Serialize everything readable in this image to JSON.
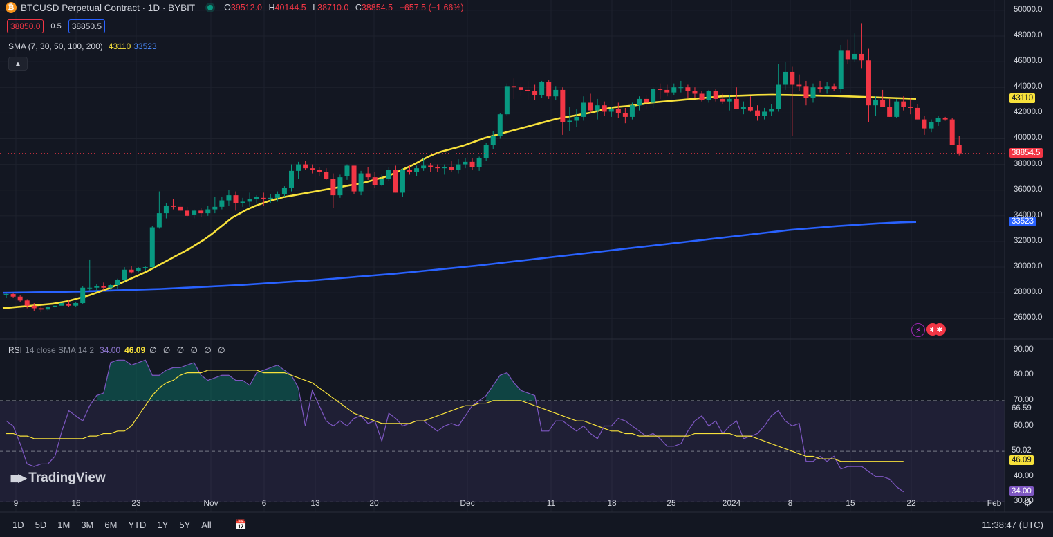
{
  "header": {
    "title": "BTCUSD Perpetual Contract · 1D · BYBIT",
    "open_key": "O",
    "open": "39512.0",
    "high_key": "H",
    "high": "40144.5",
    "low_key": "L",
    "low": "38710.0",
    "close_key": "C",
    "close": "38854.5",
    "change": "−657.5 (−1.66%)",
    "icon": "bitcoin-icon"
  },
  "prices": {
    "sell": "38850.0",
    "spread": "0.5",
    "buy": "38850.5"
  },
  "sma_legend": {
    "label": "SMA (7, 30, 50, 100, 200)",
    "val_yellow": "43110",
    "val_blue": "33523"
  },
  "rsi_legend": {
    "label": "RSI",
    "params": "14 close SMA 14 2",
    "rsi": "34.00",
    "ma": "46.09",
    "extra": "∅ ∅ ∅ ∅ ∅ ∅"
  },
  "brand": "TradingView",
  "bottom": {
    "ranges": [
      "1D",
      "5D",
      "1M",
      "3M",
      "6M",
      "YTD",
      "1Y",
      "5Y",
      "All"
    ],
    "clock": "11:38:47 (UTC)"
  },
  "colors": {
    "up": "#089981",
    "down": "#f23645",
    "sma_short": "#f7e13b",
    "sma_long": "#2962ff",
    "rsi": "#7e57c2",
    "rsi_ma": "#f7e13b",
    "bg": "#131722"
  },
  "chart_data": {
    "type": "candlestick",
    "series_labels": [
      "SMA 30",
      "SMA 200"
    ],
    "price_axis": {
      "ticks": [
        "50000.0",
        "48000.0",
        "46000.0",
        "44000.0",
        "42000.0",
        "40000.0",
        "38000.0",
        "36000.0",
        "34000.0",
        "32000.0",
        "30000.0",
        "28000.0",
        "26000.0"
      ],
      "range": [
        24400,
        50800
      ]
    },
    "x_ticks": [
      "9",
      "16",
      "23",
      "Nov",
      "6",
      "13",
      "20",
      "Dec",
      "11",
      "18",
      "25",
      "2024",
      "8",
      "15",
      "22",
      "Feb"
    ],
    "last_price": "38854.5",
    "sma_short_label": "43110",
    "sma_long_label": "33523",
    "candles": [
      [
        27800,
        28000,
        27600,
        27900
      ],
      [
        27900,
        28000,
        27600,
        27700
      ],
      [
        27700,
        27800,
        27300,
        27400
      ],
      [
        27400,
        27500,
        26800,
        27000
      ],
      [
        27000,
        27200,
        26600,
        26800
      ],
      [
        26800,
        27000,
        26500,
        26700
      ],
      [
        26700,
        27000,
        26600,
        26900
      ],
      [
        26900,
        27100,
        26800,
        27000
      ],
      [
        27000,
        27300,
        26900,
        27200
      ],
      [
        27100,
        27400,
        26900,
        27000
      ],
      [
        27000,
        27300,
        26900,
        27200
      ],
      [
        27200,
        28500,
        27100,
        28400
      ],
      [
        28400,
        30600,
        28200,
        28400
      ],
      [
        28400,
        28700,
        28100,
        28500
      ],
      [
        28500,
        28800,
        28200,
        28400
      ],
      [
        28400,
        28700,
        28200,
        28600
      ],
      [
        28600,
        29100,
        28300,
        29000
      ],
      [
        29000,
        30000,
        28900,
        29800
      ],
      [
        29800,
        30100,
        29500,
        29600
      ],
      [
        29700,
        30000,
        29600,
        29900
      ],
      [
        29900,
        30100,
        29700,
        30000
      ],
      [
        30000,
        33200,
        29900,
        33100
      ],
      [
        33100,
        35900,
        33000,
        34200
      ],
      [
        34200,
        35000,
        33800,
        34800
      ],
      [
        34800,
        35300,
        34500,
        34700
      ],
      [
        34700,
        35000,
        34200,
        34400
      ],
      [
        34400,
        34700,
        33900,
        34000
      ],
      [
        34100,
        34500,
        33800,
        34400
      ],
      [
        34400,
        34600,
        33900,
        34200
      ],
      [
        34200,
        34800,
        34000,
        34500
      ],
      [
        34500,
        35500,
        34200,
        34700
      ],
      [
        34700,
        35500,
        34500,
        35200
      ],
      [
        35200,
        36000,
        34800,
        35600
      ],
      [
        35600,
        35900,
        34400,
        35000
      ],
      [
        35000,
        35400,
        34700,
        35100
      ],
      [
        35100,
        35800,
        34700,
        35300
      ],
      [
        35300,
        35600,
        35000,
        35500
      ],
      [
        35400,
        35800,
        34800,
        35300
      ],
      [
        35300,
        35700,
        35000,
        35400
      ],
      [
        35400,
        35900,
        35100,
        35700
      ],
      [
        35700,
        36300,
        35500,
        36200
      ],
      [
        36200,
        38000,
        35900,
        37500
      ],
      [
        37500,
        38200,
        36900,
        38000
      ],
      [
        38000,
        38300,
        37600,
        37700
      ],
      [
        37700,
        38000,
        37300,
        37600
      ],
      [
        37600,
        37800,
        37100,
        37400
      ],
      [
        37400,
        37700,
        36800,
        36900
      ],
      [
        36900,
        37300,
        34600,
        35600
      ],
      [
        35600,
        37200,
        35400,
        37000
      ],
      [
        37100,
        38000,
        36800,
        37900
      ],
      [
        37900,
        37900,
        35700,
        35900
      ],
      [
        35900,
        37500,
        35600,
        37300
      ],
      [
        37300,
        37800,
        36800,
        37000
      ],
      [
        37000,
        37400,
        36200,
        36400
      ],
      [
        36400,
        37200,
        36300,
        36900
      ],
      [
        36900,
        37800,
        36700,
        37600
      ],
      [
        37600,
        37900,
        35800,
        35800
      ],
      [
        35800,
        37700,
        35500,
        37600
      ],
      [
        37600,
        37900,
        37200,
        37400
      ],
      [
        37400,
        37900,
        37100,
        37700
      ],
      [
        37700,
        38500,
        37500,
        37900
      ],
      [
        37900,
        38100,
        37400,
        37800
      ],
      [
        37800,
        38000,
        37400,
        37700
      ],
      [
        37700,
        38000,
        37200,
        37800
      ],
      [
        37800,
        38300,
        37400,
        37600
      ],
      [
        37600,
        38400,
        37300,
        38000
      ],
      [
        38000,
        38500,
        37700,
        38200
      ],
      [
        38200,
        38500,
        37600,
        37800
      ],
      [
        37800,
        38600,
        37500,
        38500
      ],
      [
        38500,
        39700,
        38300,
        39500
      ],
      [
        39500,
        40600,
        39200,
        40200
      ],
      [
        40200,
        42000,
        40000,
        41900
      ],
      [
        41900,
        44300,
        41800,
        44100
      ],
      [
        44100,
        44700,
        43100,
        44000
      ],
      [
        44000,
        44300,
        43300,
        43800
      ],
      [
        43800,
        44500,
        43000,
        43700
      ],
      [
        43700,
        44200,
        43000,
        43400
      ],
      [
        43400,
        44500,
        43200,
        44400
      ],
      [
        44400,
        44600,
        43100,
        43300
      ],
      [
        43300,
        44100,
        43000,
        43800
      ],
      [
        43800,
        44000,
        40300,
        41300
      ],
      [
        41300,
        42500,
        40600,
        41400
      ],
      [
        41400,
        42300,
        40900,
        41700
      ],
      [
        41700,
        43300,
        41400,
        42800
      ],
      [
        42800,
        43500,
        42000,
        42200
      ],
      [
        42200,
        43100,
        41500,
        42600
      ],
      [
        42600,
        42900,
        41800,
        42100
      ],
      [
        42100,
        42500,
        41700,
        42300
      ],
      [
        42300,
        42800,
        41600,
        42000
      ],
      [
        42000,
        42400,
        41200,
        41700
      ],
      [
        41700,
        42800,
        41500,
        42600
      ],
      [
        42600,
        43300,
        42200,
        43100
      ],
      [
        43100,
        43400,
        42300,
        42800
      ],
      [
        42800,
        44000,
        42400,
        43900
      ],
      [
        43900,
        44300,
        43100,
        43800
      ],
      [
        43800,
        44200,
        43300,
        43600
      ],
      [
        43600,
        44300,
        43400,
        44000
      ],
      [
        44000,
        44500,
        43600,
        44000
      ],
      [
        44000,
        44200,
        43200,
        43700
      ],
      [
        43700,
        44000,
        43200,
        43500
      ],
      [
        43500,
        43700,
        42900,
        43000
      ],
      [
        43000,
        43800,
        42800,
        43700
      ],
      [
        43700,
        43900,
        42900,
        43100
      ],
      [
        43100,
        43500,
        42700,
        42900
      ],
      [
        42900,
        43400,
        42200,
        43100
      ],
      [
        43100,
        44000,
        42400,
        42300
      ],
      [
        42300,
        42900,
        41900,
        42500
      ],
      [
        42500,
        43300,
        42100,
        42200
      ],
      [
        42200,
        42600,
        41400,
        41800
      ],
      [
        41800,
        42400,
        41500,
        42100
      ],
      [
        42100,
        42700,
        41800,
        42300
      ],
      [
        42300,
        45800,
        42100,
        44200
      ],
      [
        44200,
        46000,
        43800,
        45200
      ],
      [
        45200,
        45600,
        40200,
        44200
      ],
      [
        44200,
        45000,
        43700,
        44100
      ],
      [
        44100,
        44500,
        42600,
        43200
      ],
      [
        43200,
        44300,
        42800,
        44000
      ],
      [
        44000,
        44500,
        43600,
        43900
      ],
      [
        43900,
        44400,
        43500,
        44100
      ],
      [
        44100,
        44300,
        43700,
        43900
      ],
      [
        43900,
        47300,
        43600,
        46900
      ],
      [
        46900,
        47700,
        45800,
        46200
      ],
      [
        46200,
        48200,
        46000,
        46600
      ],
      [
        46600,
        49000,
        45500,
        46100
      ],
      [
        46100,
        47000,
        41300,
        42600
      ],
      [
        42600,
        43300,
        41800,
        43000
      ],
      [
        43000,
        43800,
        42500,
        42500
      ],
      [
        42500,
        43100,
        41700,
        41700
      ],
      [
        41700,
        43100,
        41600,
        42900
      ],
      [
        42900,
        43300,
        42200,
        42500
      ],
      [
        42500,
        43200,
        41900,
        42400
      ],
      [
        42400,
        42700,
        41500,
        41500
      ],
      [
        41500,
        41800,
        40300,
        40800
      ],
      [
        40800,
        41500,
        40500,
        41300
      ],
      [
        41300,
        41800,
        41000,
        41600
      ],
      [
        41600,
        41700,
        41400,
        41500
      ],
      [
        41500,
        41600,
        39600,
        39500
      ],
      [
        39500,
        40200,
        38700,
        38855
      ]
    ],
    "sma_short": [
      26800,
      26850,
      26900,
      26950,
      27000,
      27050,
      27100,
      27150,
      27250,
      27350,
      27500,
      27650,
      27800,
      28000,
      28200,
      28400,
      28650,
      28900,
      29150,
      29400,
      29650,
      29950,
      30250,
      30550,
      30850,
      31150,
      31450,
      31800,
      32150,
      32550,
      33000,
      33450,
      33900,
      34200,
      34500,
      34750,
      34950,
      35150,
      35300,
      35450,
      35550,
      35650,
      35750,
      35850,
      35950,
      36050,
      36150,
      36250,
      36350,
      36450,
      36550,
      36700,
      36850,
      37000,
      37200,
      37450,
      37700,
      37950,
      38250,
      38550,
      38800,
      39000,
      39150,
      39300,
      39450,
      39650,
      39850,
      40050,
      40200,
      40350,
      40500,
      40650,
      40800,
      40950,
      41100,
      41250,
      41400,
      41550,
      41650,
      41750,
      41850,
      41950,
      42050,
      42200,
      42350,
      42450,
      42500,
      42550,
      42600,
      42700,
      42800,
      42850,
      42900,
      42950,
      43000,
      43050,
      43100,
      43150,
      43200,
      43250,
      43300,
      43320,
      43340,
      43360,
      43380,
      43400,
      43410,
      43420,
      43410,
      43400,
      43390,
      43380,
      43370,
      43360,
      43350,
      43340,
      43330,
      43310,
      43290,
      43270,
      43250,
      43230,
      43210,
      43190,
      43170,
      43150,
      43130,
      43110
    ],
    "sma_long": [
      28000,
      28010,
      28020,
      28030,
      28040,
      28050,
      28060,
      28070,
      28080,
      28090,
      28100,
      28120,
      28140,
      28160,
      28180,
      28200,
      28220,
      28240,
      28260,
      28280,
      28300,
      28330,
      28360,
      28390,
      28420,
      28450,
      28480,
      28510,
      28540,
      28570,
      28600,
      28640,
      28680,
      28720,
      28760,
      28800,
      28840,
      28880,
      28920,
      28960,
      29000,
      29050,
      29100,
      29150,
      29200,
      29250,
      29300,
      29350,
      29400,
      29450,
      29500,
      29560,
      29620,
      29680,
      29740,
      29800,
      29860,
      29920,
      29980,
      30040,
      30100,
      30170,
      30240,
      30310,
      30380,
      30450,
      30520,
      30590,
      30660,
      30730,
      30800,
      30870,
      30940,
      31010,
      31080,
      31150,
      31220,
      31290,
      31360,
      31430,
      31500,
      31570,
      31640,
      31710,
      31780,
      31850,
      31920,
      31990,
      32060,
      32130,
      32200,
      32270,
      32340,
      32410,
      32480,
      32550,
      32620,
      32690,
      32760,
      32830,
      32900,
      32950,
      33000,
      33050,
      33100,
      33150,
      33200,
      33240,
      33280,
      33320,
      33360,
      33400,
      33430,
      33460,
      33490,
      33510,
      33523
    ],
    "rsi": {
      "axis_ticks": [
        "90.00",
        "80.00",
        "70.00",
        "60.00",
        "50.00",
        "40.00",
        "30.00"
      ],
      "range": [
        26,
        94
      ],
      "upper": 70,
      "middle": 50,
      "lower": 30,
      "label_upper": "66.59",
      "label_middle": "50.02",
      "label_ma": "46.09",
      "label_rsi": "34.00",
      "values": [
        62,
        60,
        53,
        45,
        44,
        45,
        45,
        48,
        58,
        66,
        64,
        62,
        68,
        72,
        73,
        85,
        86,
        86,
        84,
        85,
        86,
        80,
        80,
        82,
        83,
        83,
        84,
        85,
        80,
        78,
        79,
        80,
        80,
        78,
        78,
        76,
        81,
        82,
        83,
        84,
        82,
        80,
        75,
        60,
        74,
        68,
        62,
        60,
        62,
        60,
        63,
        64,
        61,
        62,
        54,
        65,
        63,
        60,
        61,
        62,
        62,
        60,
        58,
        60,
        61,
        60,
        64,
        68,
        70,
        72,
        76,
        80,
        81,
        77,
        74,
        73,
        72,
        58,
        58,
        62,
        62,
        60,
        58,
        60,
        57,
        55,
        60,
        60,
        63,
        62,
        60,
        58,
        56,
        57,
        55,
        52,
        52,
        53,
        58,
        62,
        64,
        60,
        62,
        57,
        60,
        62,
        55,
        56,
        57,
        60,
        64,
        66,
        62,
        60,
        61,
        46,
        46,
        48,
        46,
        48,
        43,
        44,
        44,
        44,
        42,
        40,
        40,
        39,
        36,
        34
      ],
      "ma": [
        57,
        57,
        56,
        56,
        55,
        55,
        55,
        55,
        55,
        55,
        55,
        55,
        56,
        56,
        57,
        57,
        58,
        58,
        60,
        64,
        68,
        72,
        75,
        77,
        78,
        80,
        81,
        81,
        81,
        82,
        82,
        82,
        82,
        82,
        82,
        82,
        82,
        81,
        81,
        81,
        81,
        80,
        79,
        78,
        77,
        75,
        73,
        71,
        69,
        67,
        65,
        64,
        63,
        62,
        61,
        61,
        61,
        61,
        61,
        62,
        62,
        63,
        64,
        65,
        66,
        67,
        68,
        68,
        69,
        69,
        70,
        70,
        70,
        70,
        70,
        69,
        68,
        67,
        66,
        65,
        64,
        63,
        62,
        62,
        61,
        60,
        59,
        58,
        58,
        57,
        57,
        56,
        56,
        56,
        56,
        56,
        56,
        56,
        56,
        57,
        57,
        57,
        57,
        57,
        57,
        56,
        56,
        56,
        55,
        54,
        53,
        52,
        51,
        50,
        49,
        48,
        48,
        47,
        47,
        47,
        46,
        46,
        46,
        46,
        46,
        46,
        46,
        46,
        46,
        46
      ]
    }
  }
}
